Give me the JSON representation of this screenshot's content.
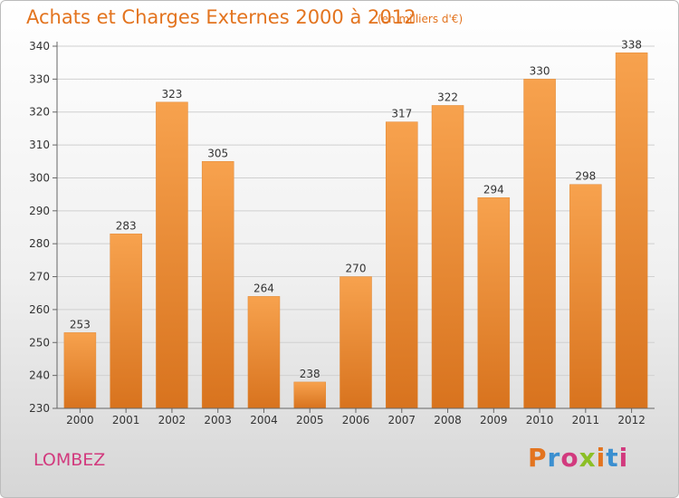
{
  "chart_data": {
    "type": "bar",
    "title": "Achats et Charges Externes 2000 à 2012",
    "subtitle": "(en milliers d'€)",
    "categories": [
      "2000",
      "2001",
      "2002",
      "2003",
      "2004",
      "2005",
      "2006",
      "2007",
      "2008",
      "2009",
      "2010",
      "2011",
      "2012"
    ],
    "values": [
      253,
      283,
      323,
      305,
      264,
      238,
      270,
      317,
      322,
      294,
      330,
      298,
      338
    ],
    "ylim": [
      230,
      340
    ],
    "yticks": [
      230,
      240,
      250,
      260,
      270,
      280,
      290,
      300,
      310,
      320,
      330,
      340
    ],
    "grid": true,
    "bar_color_top": "#f7a24e",
    "bar_color_bottom": "#d8731e"
  },
  "footer": {
    "place": "LOMBEZ",
    "logo_text": "Proxiti",
    "logo_colors": [
      "#e3741f",
      "#3b8fd0",
      "#d23a7e",
      "#8cbf26",
      "#e3741f",
      "#3b8fd0",
      "#d23a7e"
    ]
  }
}
